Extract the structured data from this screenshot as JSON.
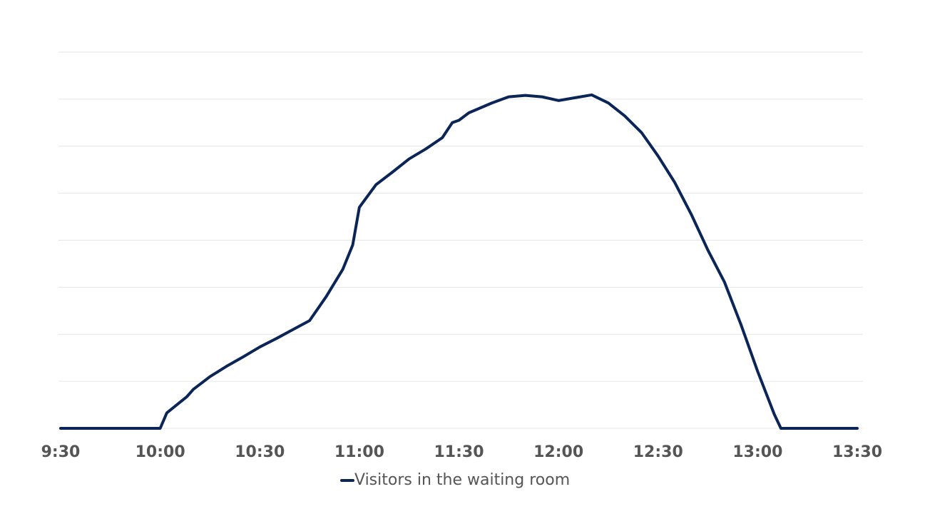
{
  "chart_data": {
    "type": "line",
    "x": [
      "9:30",
      "10:00",
      "10:02",
      "10:05",
      "10:08",
      "10:10",
      "10:15",
      "10:20",
      "10:25",
      "10:30",
      "10:35",
      "10:40",
      "10:45",
      "10:50",
      "10:55",
      "10:58",
      "11:00",
      "11:05",
      "11:10",
      "11:15",
      "11:20",
      "11:25",
      "11:28",
      "11:30",
      "11:33",
      "11:40",
      "11:45",
      "11:50",
      "11:55",
      "12:00",
      "12:05",
      "12:10",
      "12:15",
      "12:20",
      "12:25",
      "12:30",
      "12:35",
      "12:40",
      "12:45",
      "12:50",
      "12:55",
      "13:00",
      "13:05",
      "13:07",
      "13:30"
    ],
    "series": [
      {
        "name": "Visitors in the waiting room",
        "color": "#0c2557",
        "values": [
          0,
          0,
          0.33,
          0.5,
          0.67,
          0.83,
          1.1,
          1.32,
          1.52,
          1.73,
          1.91,
          2.1,
          2.29,
          2.8,
          3.38,
          3.9,
          4.7,
          5.18,
          5.45,
          5.73,
          5.94,
          6.18,
          6.5,
          6.55,
          6.71,
          6.92,
          7.05,
          7.08,
          7.05,
          6.97,
          7.03,
          7.09,
          6.92,
          6.64,
          6.29,
          5.79,
          5.23,
          4.55,
          3.79,
          3.11,
          2.2,
          1.21,
          0.3,
          0,
          0
        ]
      }
    ],
    "xlim": [
      "9:30",
      "13:30"
    ],
    "xticks": [
      "9:30",
      "10:00",
      "10:30",
      "11:00",
      "11:30",
      "12:00",
      "12:30",
      "13:00",
      "13:30"
    ],
    "ylim": [
      0,
      8
    ],
    "yticks": [
      0,
      1,
      2,
      3,
      4,
      5,
      6,
      7,
      8
    ],
    "ytick_labels": false,
    "grid": true,
    "legend": "bottom"
  }
}
